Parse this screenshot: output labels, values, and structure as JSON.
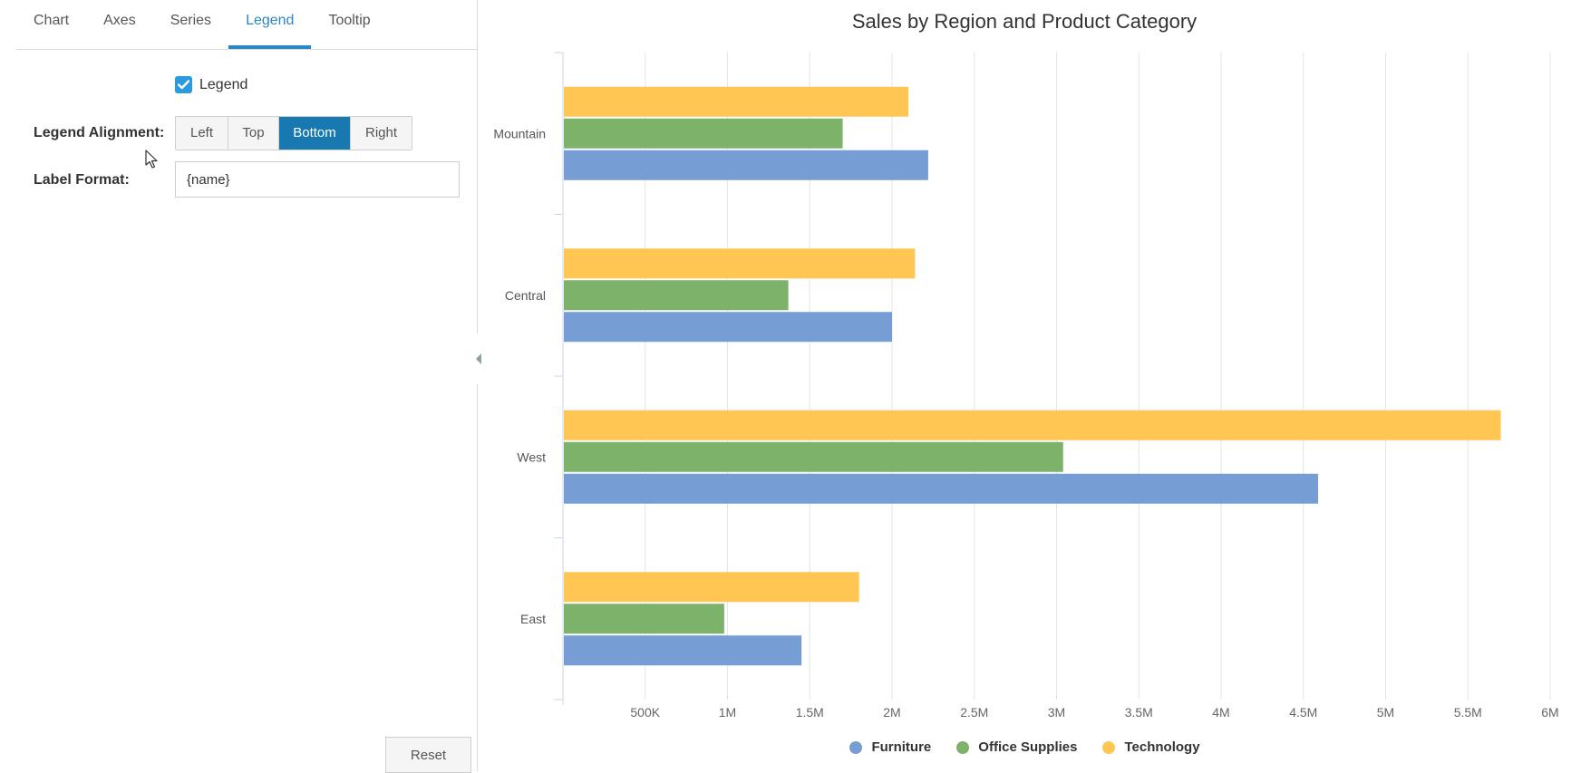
{
  "tabs": [
    {
      "label": "Chart",
      "active": false
    },
    {
      "label": "Axes",
      "active": false
    },
    {
      "label": "Series",
      "active": false
    },
    {
      "label": "Legend",
      "active": true
    },
    {
      "label": "Tooltip",
      "active": false
    }
  ],
  "legend_settings": {
    "checkbox_label": "Legend",
    "checked": true,
    "alignment_label": "Legend Alignment:",
    "alignment_options": [
      "Left",
      "Top",
      "Bottom",
      "Right"
    ],
    "alignment_selected": "Bottom",
    "label_format_label": "Label Format:",
    "label_format_value": "{name}"
  },
  "reset_label": "Reset",
  "colors": {
    "accent": "#2b87c8",
    "selected": "#1779b0",
    "furniture": "#779ed4",
    "office_supplies": "#7db26a",
    "technology": "#ffc654"
  },
  "chart_data": {
    "type": "bar",
    "orientation": "horizontal",
    "title": "Sales by Region and Product Category",
    "categories": [
      "Mountain",
      "Central",
      "West",
      "East"
    ],
    "series": [
      {
        "name": "Technology",
        "color": "#ffc654",
        "values": [
          2100000,
          2140000,
          5700000,
          1800000
        ]
      },
      {
        "name": "Office Supplies",
        "color": "#7db26a",
        "values": [
          1700000,
          1370000,
          3040000,
          980000
        ]
      },
      {
        "name": "Furniture",
        "color": "#779ed4",
        "values": [
          2220000,
          2000000,
          4590000,
          1450000
        ]
      }
    ],
    "xlim": [
      0,
      6000000
    ],
    "x_ticks": [
      {
        "value": 500000,
        "label": "500K"
      },
      {
        "value": 1000000,
        "label": "1M"
      },
      {
        "value": 1500000,
        "label": "1.5M"
      },
      {
        "value": 2000000,
        "label": "2M"
      },
      {
        "value": 2500000,
        "label": "2.5M"
      },
      {
        "value": 3000000,
        "label": "3M"
      },
      {
        "value": 3500000,
        "label": "3.5M"
      },
      {
        "value": 4000000,
        "label": "4M"
      },
      {
        "value": 4500000,
        "label": "4.5M"
      },
      {
        "value": 5000000,
        "label": "5M"
      },
      {
        "value": 5500000,
        "label": "5.5M"
      },
      {
        "value": 6000000,
        "label": "6M"
      }
    ],
    "grid": true,
    "legend_position": "bottom",
    "legend": [
      {
        "name": "Furniture",
        "color": "#779ed4"
      },
      {
        "name": "Office Supplies",
        "color": "#7db26a"
      },
      {
        "name": "Technology",
        "color": "#ffc654"
      }
    ]
  }
}
